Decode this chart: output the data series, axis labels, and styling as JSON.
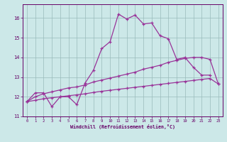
{
  "xlabel": "Windchill (Refroidissement éolien,°C)",
  "background_color": "#cce8e8",
  "line_color": "#993399",
  "grid_color": "#99bbbb",
  "xlim": [
    -0.5,
    23.5
  ],
  "ylim": [
    11.0,
    16.7
  ],
  "yticks": [
    11,
    12,
    13,
    14,
    15,
    16
  ],
  "xticks": [
    0,
    1,
    2,
    3,
    4,
    5,
    6,
    7,
    8,
    9,
    10,
    11,
    12,
    13,
    14,
    15,
    16,
    17,
    18,
    19,
    20,
    21,
    22,
    23
  ],
  "line1_x": [
    0,
    1,
    2,
    3,
    4,
    5,
    6,
    7,
    8,
    9,
    10,
    11,
    12,
    13,
    14,
    15,
    16,
    17,
    18,
    19,
    20,
    21,
    22
  ],
  "line1_y": [
    11.75,
    12.2,
    12.2,
    11.5,
    12.0,
    12.0,
    11.6,
    12.7,
    13.35,
    14.45,
    14.8,
    16.2,
    15.95,
    16.15,
    15.7,
    15.75,
    15.1,
    14.95,
    13.9,
    14.0,
    13.5,
    13.1,
    13.1
  ],
  "line2_x": [
    0,
    1,
    2,
    3,
    4,
    5,
    6,
    7,
    8,
    9,
    10,
    11,
    12,
    13,
    14,
    15,
    16,
    17,
    18,
    19,
    20,
    21,
    22,
    23
  ],
  "line2_y": [
    11.75,
    12.0,
    12.15,
    12.25,
    12.35,
    12.45,
    12.5,
    12.6,
    12.75,
    12.85,
    12.95,
    13.05,
    13.15,
    13.25,
    13.4,
    13.5,
    13.6,
    13.75,
    13.85,
    13.95,
    14.0,
    14.0,
    13.9,
    12.65
  ],
  "line3_x": [
    0,
    1,
    2,
    3,
    4,
    5,
    6,
    7,
    8,
    9,
    10,
    11,
    12,
    13,
    14,
    15,
    16,
    17,
    18,
    19,
    20,
    21,
    22,
    23
  ],
  "line3_y": [
    11.75,
    11.82,
    11.9,
    11.95,
    12.0,
    12.05,
    12.1,
    12.15,
    12.22,
    12.28,
    12.33,
    12.38,
    12.43,
    12.48,
    12.53,
    12.58,
    12.63,
    12.68,
    12.73,
    12.78,
    12.83,
    12.88,
    12.93,
    12.65
  ]
}
